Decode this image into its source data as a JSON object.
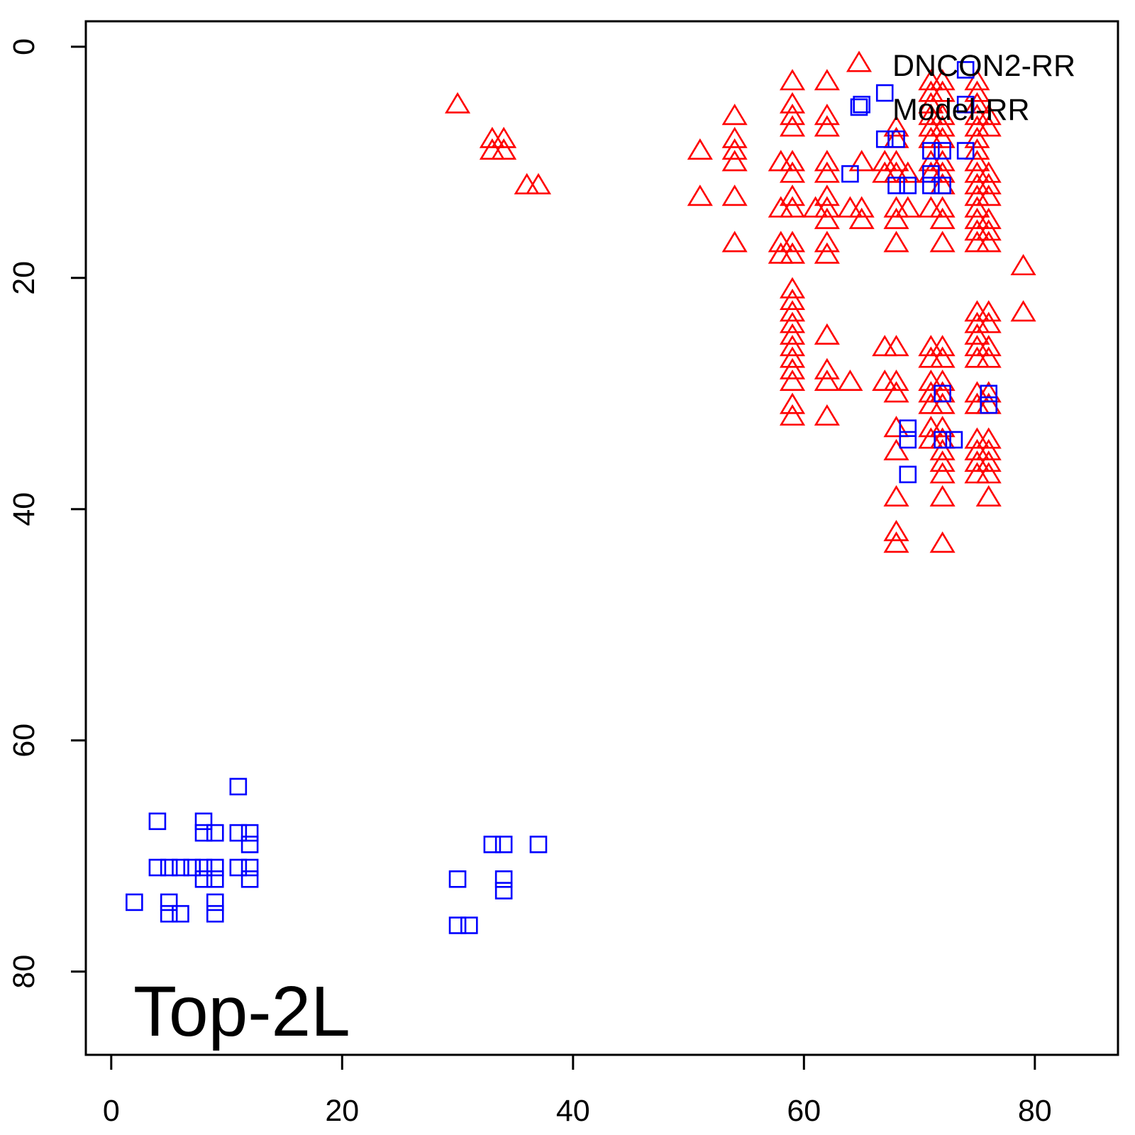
{
  "chart_data": {
    "type": "scatter",
    "title": "",
    "xlabel": "",
    "ylabel": "",
    "xlim": [
      -2.2,
      87.2
    ],
    "ylim": [
      87.2,
      -2.2
    ],
    "y_axis_inverted": true,
    "x_ticks": [
      0,
      20,
      40,
      60,
      80
    ],
    "y_ticks": [
      0,
      20,
      40,
      60,
      80
    ],
    "x_tick_labels": [
      "0",
      "20",
      "40",
      "60",
      "80"
    ],
    "y_tick_labels": [
      "0",
      "20",
      "40",
      "60",
      "80"
    ],
    "grid": false,
    "legend_position": "top-right",
    "annotation": "Top-2L",
    "series": [
      {
        "name": "DNCON2-RR",
        "marker": "triangle-open",
        "color": "#ff0000",
        "points": [
          [
            30,
            5
          ],
          [
            33,
            8
          ],
          [
            34,
            8
          ],
          [
            33,
            9
          ],
          [
            34,
            9
          ],
          [
            36,
            12
          ],
          [
            37,
            12
          ],
          [
            51,
            9
          ],
          [
            51,
            13
          ],
          [
            54,
            6
          ],
          [
            54,
            8
          ],
          [
            54,
            9
          ],
          [
            54,
            10
          ],
          [
            54,
            13
          ],
          [
            54,
            17
          ],
          [
            58,
            10
          ],
          [
            58,
            14
          ],
          [
            58,
            17
          ],
          [
            58,
            18
          ],
          [
            59,
            3
          ],
          [
            59,
            5
          ],
          [
            59,
            6
          ],
          [
            59,
            7
          ],
          [
            59,
            10
          ],
          [
            59,
            11
          ],
          [
            59,
            13
          ],
          [
            59,
            14
          ],
          [
            59,
            17
          ],
          [
            59,
            18
          ],
          [
            59,
            21
          ],
          [
            59,
            22
          ],
          [
            59,
            23
          ],
          [
            59,
            24
          ],
          [
            59,
            25
          ],
          [
            59,
            26
          ],
          [
            59,
            27
          ],
          [
            59,
            28
          ],
          [
            59,
            29
          ],
          [
            59,
            31
          ],
          [
            59,
            32
          ],
          [
            61,
            14
          ],
          [
            62,
            3
          ],
          [
            62,
            6
          ],
          [
            62,
            7
          ],
          [
            62,
            10
          ],
          [
            62,
            11
          ],
          [
            62,
            13
          ],
          [
            62,
            14
          ],
          [
            62,
            15
          ],
          [
            62,
            17
          ],
          [
            62,
            18
          ],
          [
            62,
            25
          ],
          [
            62,
            28
          ],
          [
            62,
            29
          ],
          [
            62,
            32
          ],
          [
            64,
            14
          ],
          [
            64,
            29
          ],
          [
            65,
            10
          ],
          [
            65,
            14
          ],
          [
            65,
            15
          ],
          [
            67,
            10
          ],
          [
            67,
            11
          ],
          [
            67,
            26
          ],
          [
            67,
            29
          ],
          [
            68,
            7
          ],
          [
            68,
            8
          ],
          [
            68,
            10
          ],
          [
            68,
            11
          ],
          [
            68,
            14
          ],
          [
            68,
            15
          ],
          [
            68,
            17
          ],
          [
            68,
            26
          ],
          [
            68,
            29
          ],
          [
            68,
            30
          ],
          [
            68,
            33
          ],
          [
            68,
            35
          ],
          [
            68,
            39
          ],
          [
            68,
            42
          ],
          [
            68,
            43
          ],
          [
            69,
            11
          ],
          [
            69,
            14
          ],
          [
            71,
            3
          ],
          [
            71,
            4
          ],
          [
            71,
            5
          ],
          [
            71,
            6
          ],
          [
            71,
            7
          ],
          [
            71,
            8
          ],
          [
            71,
            10
          ],
          [
            71,
            11
          ],
          [
            71,
            14
          ],
          [
            71,
            26
          ],
          [
            71,
            27
          ],
          [
            71,
            29
          ],
          [
            71,
            30
          ],
          [
            71,
            31
          ],
          [
            71,
            33
          ],
          [
            71,
            34
          ],
          [
            72,
            3
          ],
          [
            72,
            4
          ],
          [
            72,
            6
          ],
          [
            72,
            7
          ],
          [
            72,
            8
          ],
          [
            72,
            10
          ],
          [
            72,
            11
          ],
          [
            72,
            12
          ],
          [
            72,
            14
          ],
          [
            72,
            15
          ],
          [
            72,
            17
          ],
          [
            72,
            26
          ],
          [
            72,
            27
          ],
          [
            72,
            29
          ],
          [
            72,
            30
          ],
          [
            72,
            31
          ],
          [
            72,
            33
          ],
          [
            72,
            34
          ],
          [
            72,
            35
          ],
          [
            72,
            36
          ],
          [
            72,
            37
          ],
          [
            72,
            39
          ],
          [
            72,
            43
          ],
          [
            75,
            3
          ],
          [
            75,
            4
          ],
          [
            75,
            5
          ],
          [
            75,
            6
          ],
          [
            75,
            7
          ],
          [
            75,
            8
          ],
          [
            75,
            9
          ],
          [
            75,
            10
          ],
          [
            75,
            11
          ],
          [
            75,
            12
          ],
          [
            75,
            13
          ],
          [
            75,
            14
          ],
          [
            75,
            15
          ],
          [
            75,
            16
          ],
          [
            75,
            17
          ],
          [
            75,
            23
          ],
          [
            75,
            24
          ],
          [
            75,
            25
          ],
          [
            75,
            26
          ],
          [
            75,
            27
          ],
          [
            75,
            30
          ],
          [
            75,
            31
          ],
          [
            75,
            34
          ],
          [
            75,
            35
          ],
          [
            75,
            36
          ],
          [
            75,
            37
          ],
          [
            76,
            6
          ],
          [
            76,
            7
          ],
          [
            76,
            11
          ],
          [
            76,
            12
          ],
          [
            76,
            13
          ],
          [
            76,
            15
          ],
          [
            76,
            16
          ],
          [
            76,
            17
          ],
          [
            76,
            23
          ],
          [
            76,
            24
          ],
          [
            76,
            26
          ],
          [
            76,
            27
          ],
          [
            76,
            30
          ],
          [
            76,
            31
          ],
          [
            76,
            34
          ],
          [
            76,
            35
          ],
          [
            76,
            36
          ],
          [
            76,
            37
          ],
          [
            76,
            39
          ],
          [
            79,
            19
          ],
          [
            79,
            23
          ]
        ]
      },
      {
        "name": "Model-RR",
        "marker": "square-open",
        "color": "#0000ff",
        "points": [
          [
            74,
            2
          ],
          [
            65,
            5
          ],
          [
            67,
            4
          ],
          [
            74,
            5
          ],
          [
            67,
            8
          ],
          [
            68,
            8
          ],
          [
            71,
            9
          ],
          [
            72,
            9
          ],
          [
            74,
            9
          ],
          [
            64,
            11
          ],
          [
            68,
            12
          ],
          [
            69,
            12
          ],
          [
            71,
            12
          ],
          [
            72,
            12
          ],
          [
            71,
            11
          ],
          [
            72,
            30
          ],
          [
            76,
            30
          ],
          [
            76,
            31
          ],
          [
            69,
            33
          ],
          [
            69,
            34
          ],
          [
            72,
            34
          ],
          [
            73,
            34
          ],
          [
            69,
            37
          ],
          [
            11,
            64
          ],
          [
            4,
            67
          ],
          [
            8,
            67
          ],
          [
            8,
            68
          ],
          [
            9,
            68
          ],
          [
            11,
            68
          ],
          [
            12,
            68
          ],
          [
            12,
            69
          ],
          [
            4,
            71
          ],
          [
            5,
            71
          ],
          [
            6,
            71
          ],
          [
            7,
            71
          ],
          [
            8,
            71
          ],
          [
            9,
            71
          ],
          [
            11,
            71
          ],
          [
            12,
            71
          ],
          [
            8,
            72
          ],
          [
            9,
            72
          ],
          [
            12,
            72
          ],
          [
            2,
            74
          ],
          [
            5,
            74
          ],
          [
            9,
            74
          ],
          [
            5,
            75
          ],
          [
            6,
            75
          ],
          [
            9,
            75
          ],
          [
            33,
            69
          ],
          [
            34,
            69
          ],
          [
            37,
            69
          ],
          [
            30,
            72
          ],
          [
            34,
            72
          ],
          [
            34,
            73
          ],
          [
            30,
            76
          ],
          [
            31,
            76
          ]
        ]
      }
    ]
  }
}
